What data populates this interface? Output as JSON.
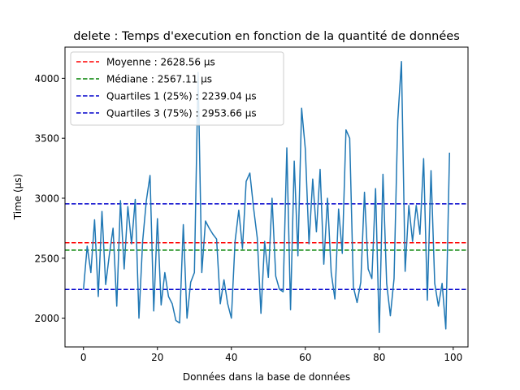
{
  "chart_data": {
    "type": "line",
    "title": "delete : Temps d'execution en fonction de la quantité de données",
    "xlabel": "Données dans la base de données",
    "ylabel": "Time (µs)",
    "xlim": [
      -5,
      104
    ],
    "ylim": [
      1760,
      4260
    ],
    "xticks": [
      0,
      20,
      40,
      60,
      80,
      100
    ],
    "yticks": [
      2000,
      2500,
      3000,
      3500,
      4000
    ],
    "legend_position": "top-left",
    "line_color": "#1f77b4",
    "series": [
      {
        "x": [
          0,
          1,
          2,
          3,
          4,
          5,
          6,
          7,
          8,
          9,
          10,
          11,
          12,
          13,
          14,
          15,
          16,
          17,
          18,
          19,
          20,
          21,
          22,
          23,
          24,
          25,
          26,
          27,
          28,
          29,
          30,
          31,
          32,
          33,
          34,
          35,
          36,
          37,
          38,
          39,
          40,
          41,
          42,
          43,
          44,
          45,
          46,
          47,
          48,
          49,
          50,
          51,
          52,
          53,
          54,
          55,
          56,
          57,
          58,
          59,
          60,
          61,
          62,
          63,
          64,
          65,
          66,
          67,
          68,
          69,
          70,
          71,
          72,
          73,
          74,
          75,
          76,
          77,
          78,
          79,
          80,
          81,
          82,
          83,
          84,
          85,
          86,
          87,
          88,
          89,
          90,
          91,
          92,
          93,
          94,
          95,
          96,
          97,
          98,
          99
        ],
        "values": [
          2240,
          2600,
          2380,
          2820,
          2180,
          2890,
          2280,
          2530,
          2750,
          2100,
          2980,
          2410,
          2930,
          2620,
          2990,
          2000,
          2640,
          2980,
          3190,
          2060,
          2830,
          2110,
          2380,
          2180,
          2120,
          1980,
          1960,
          2780,
          2000,
          2300,
          2380,
          4050,
          2380,
          2810,
          2750,
          2700,
          2660,
          2120,
          2320,
          2120,
          2000,
          2640,
          2900,
          2580,
          3140,
          3210,
          2920,
          2670,
          2040,
          2640,
          2340,
          3000,
          2350,
          2240,
          2220,
          3420,
          2070,
          3310,
          2520,
          3750,
          3410,
          2620,
          3160,
          2720,
          3240,
          2450,
          3000,
          2380,
          2160,
          2910,
          2540,
          3570,
          3500,
          2260,
          2130,
          2300,
          3050,
          2410,
          2330,
          3080,
          1880,
          3200,
          2290,
          2020,
          2330,
          3650,
          4140,
          2390,
          2940,
          2640,
          2940,
          2700,
          3330,
          2150,
          3230,
          2290,
          2100,
          2290,
          1910,
          3380
        ]
      }
    ],
    "reference_lines": [
      {
        "label": "Moyenne : 2628.56 µs",
        "value": 2628.56,
        "color": "#ff0000"
      },
      {
        "label": "Médiane : 2567.11 µs",
        "value": 2567.11,
        "color": "#008000"
      },
      {
        "label": "Quartiles 1 (25%) : 2239.04 µs",
        "value": 2239.04,
        "color": "#0000cc"
      },
      {
        "label": "Quartiles 3 (75%) : 2953.66 µs",
        "value": 2953.66,
        "color": "#0000cc"
      }
    ]
  }
}
